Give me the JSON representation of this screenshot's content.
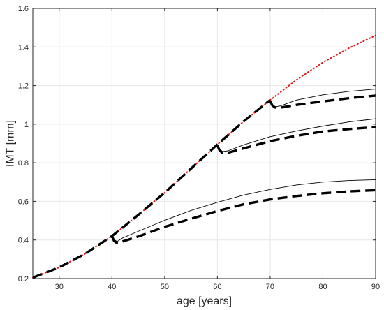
{
  "chart_data": {
    "type": "line",
    "xlabel": "age [years]",
    "ylabel": "IMT [mm]",
    "xlim": [
      25,
      90
    ],
    "ylim": [
      0.2,
      1.6
    ],
    "xticks": [
      30,
      40,
      50,
      60,
      70,
      80,
      90
    ],
    "yticks": [
      0.2,
      0.4,
      0.6,
      0.8,
      1,
      1.2,
      1.4,
      1.6
    ],
    "grid": true,
    "series": [
      {
        "style": "dotted",
        "color": "#e31a1c",
        "width": 2,
        "x": [
          25,
          30,
          35,
          40,
          45,
          50,
          55,
          60,
          65,
          70,
          75,
          80,
          85,
          90
        ],
        "y": [
          0.205,
          0.258,
          0.33,
          0.42,
          0.53,
          0.645,
          0.77,
          0.895,
          1.015,
          1.125,
          1.23,
          1.32,
          1.395,
          1.46
        ]
      },
      {
        "style": "dashed",
        "color": "#000000",
        "width": 3.4,
        "x": [
          25,
          30,
          35,
          40,
          45,
          50,
          55,
          60,
          65,
          70
        ],
        "y": [
          0.205,
          0.258,
          0.33,
          0.42,
          0.53,
          0.645,
          0.77,
          0.895,
          1.015,
          1.125
        ]
      },
      {
        "style": "solid",
        "color": "#000000",
        "width": 0.9,
        "x": [
          40,
          40.5,
          41,
          42,
          45,
          50,
          55,
          60,
          65,
          70,
          75,
          80,
          85,
          90
        ],
        "y": [
          0.425,
          0.4,
          0.392,
          0.41,
          0.445,
          0.502,
          0.553,
          0.595,
          0.633,
          0.662,
          0.685,
          0.7,
          0.708,
          0.712
        ]
      },
      {
        "style": "dashed",
        "color": "#000000",
        "width": 3.4,
        "x": [
          40,
          40.4,
          40.9,
          41.5,
          42,
          45,
          50,
          55,
          60,
          65,
          70,
          75,
          80,
          85,
          90
        ],
        "y": [
          0.42,
          0.395,
          0.385,
          0.386,
          0.392,
          0.418,
          0.468,
          0.51,
          0.55,
          0.585,
          0.61,
          0.628,
          0.642,
          0.652,
          0.658
        ]
      },
      {
        "style": "solid",
        "color": "#000000",
        "width": 0.9,
        "x": [
          60,
          60.5,
          61,
          62,
          65,
          70,
          75,
          80,
          85,
          90
        ],
        "y": [
          0.895,
          0.87,
          0.858,
          0.862,
          0.893,
          0.935,
          0.965,
          0.99,
          1.012,
          1.028
        ]
      },
      {
        "style": "dashed",
        "color": "#000000",
        "width": 3.4,
        "x": [
          60,
          60.4,
          60.9,
          61.5,
          62,
          65,
          70,
          75,
          80,
          85,
          90
        ],
        "y": [
          0.89,
          0.865,
          0.852,
          0.848,
          0.852,
          0.875,
          0.912,
          0.94,
          0.962,
          0.975,
          0.985
        ]
      },
      {
        "style": "solid",
        "color": "#000000",
        "width": 0.9,
        "x": [
          70,
          70.5,
          71,
          72,
          75,
          80,
          85,
          90
        ],
        "y": [
          1.125,
          1.1,
          1.09,
          1.095,
          1.125,
          1.152,
          1.17,
          1.182
        ]
      },
      {
        "style": "dashed",
        "color": "#000000",
        "width": 3.4,
        "x": [
          70,
          70.4,
          70.9,
          71.5,
          72,
          75,
          80,
          85,
          90
        ],
        "y": [
          1.12,
          1.098,
          1.087,
          1.084,
          1.086,
          1.1,
          1.118,
          1.135,
          1.148
        ]
      }
    ]
  }
}
